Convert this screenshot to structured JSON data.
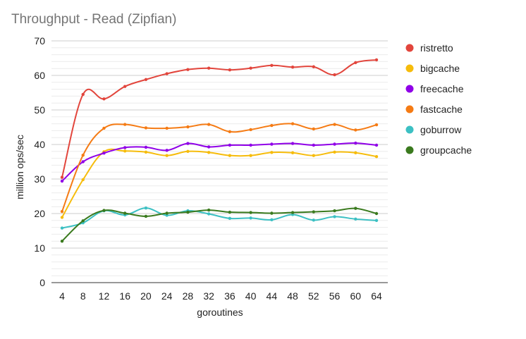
{
  "chart_data": {
    "type": "line",
    "title": "Throughput - Read (Zipfian)",
    "xlabel": "goroutines",
    "ylabel": "million ops/sec",
    "ylim": [
      0,
      70
    ],
    "y_major_ticks": [
      0,
      10,
      20,
      30,
      40,
      50,
      60,
      70
    ],
    "y_minor_step": 2,
    "grid": true,
    "legend_position": "right",
    "smooth": true,
    "categories": [
      "4",
      "8",
      "12",
      "16",
      "20",
      "24",
      "28",
      "32",
      "36",
      "40",
      "44",
      "48",
      "52",
      "56",
      "60",
      "64"
    ],
    "series": [
      {
        "name": "ristretto",
        "color": "#e2453c",
        "values": [
          30.5,
          54.5,
          53.2,
          56.8,
          58.8,
          60.5,
          61.7,
          62.1,
          61.6,
          62.1,
          62.9,
          62.4,
          62.5,
          60.2,
          63.7,
          64.5
        ]
      },
      {
        "name": "bigcache",
        "color": "#f6bc0b",
        "values": [
          18.9,
          29.8,
          37.9,
          38.1,
          37.8,
          36.8,
          38.0,
          37.7,
          36.8,
          36.8,
          37.7,
          37.6,
          36.8,
          37.8,
          37.6,
          36.5
        ]
      },
      {
        "name": "freecache",
        "color": "#9000e8",
        "values": [
          29.4,
          35.0,
          37.5,
          39.1,
          39.2,
          38.3,
          40.3,
          39.3,
          39.8,
          39.8,
          40.1,
          40.3,
          39.8,
          40.1,
          40.4,
          39.8
        ]
      },
      {
        "name": "fastcache",
        "color": "#f57b14",
        "values": [
          20.6,
          36.9,
          44.7,
          45.8,
          44.8,
          44.7,
          45.1,
          45.8,
          43.7,
          44.3,
          45.5,
          46.0,
          44.5,
          45.8,
          44.2,
          45.7
        ]
      },
      {
        "name": "goburrow",
        "color": "#3cc0c3",
        "values": [
          15.8,
          17.3,
          20.8,
          19.6,
          21.6,
          19.5,
          20.8,
          19.9,
          18.6,
          18.7,
          18.2,
          19.7,
          18.1,
          19.1,
          18.4,
          18.0
        ]
      },
      {
        "name": "groupcache",
        "color": "#3a7a1e",
        "values": [
          12.0,
          17.9,
          20.9,
          20.1,
          19.2,
          20.1,
          20.4,
          21.0,
          20.4,
          20.3,
          20.1,
          20.3,
          20.5,
          20.8,
          21.5,
          20.0
        ]
      }
    ]
  }
}
